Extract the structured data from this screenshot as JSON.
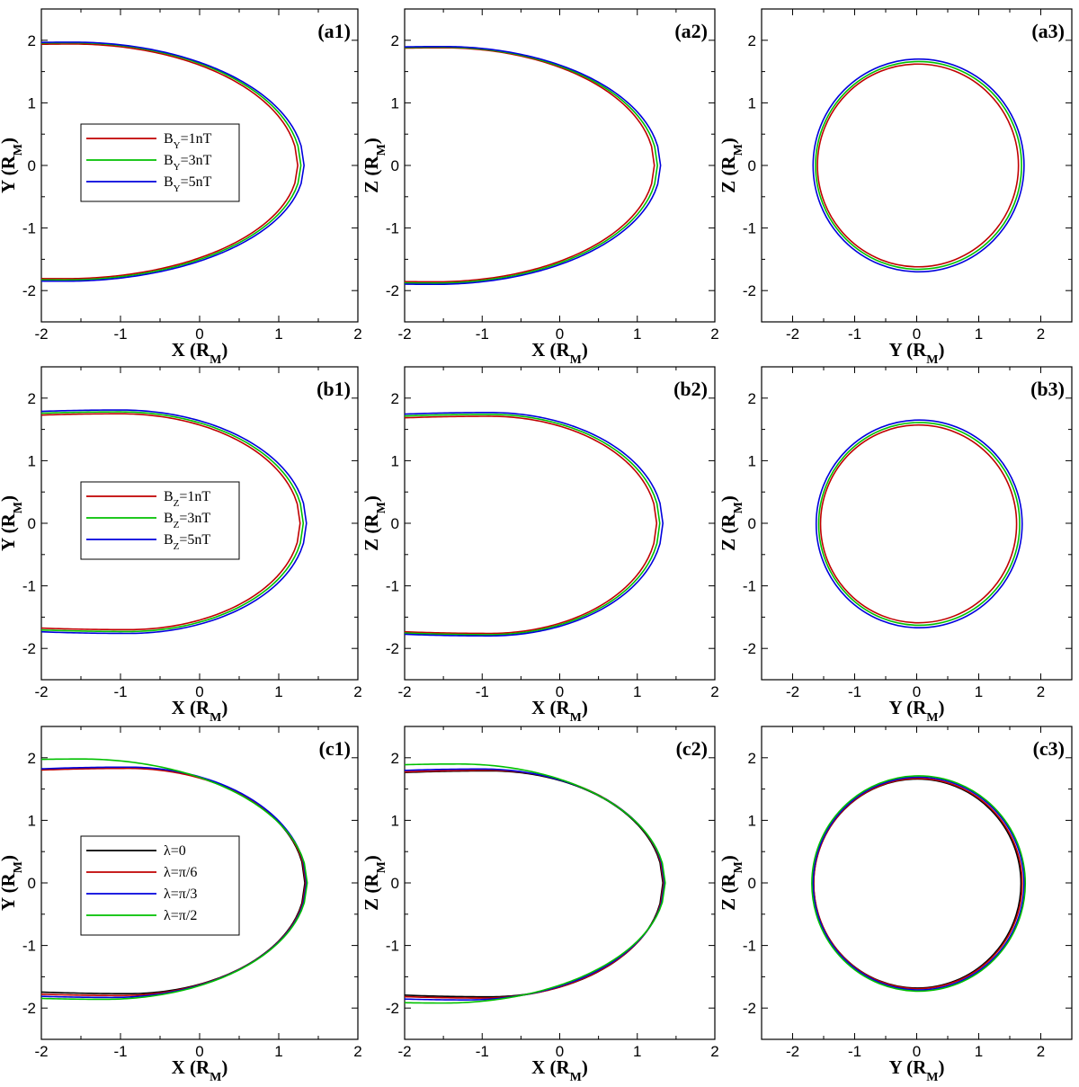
{
  "colors": {
    "red": "#c00000",
    "green": "#00c000",
    "blue": "#0000dd",
    "black": "#000000"
  },
  "chart_data": [
    {
      "id": "a1",
      "type": "line",
      "shape": "xsec",
      "xlabel": "X (R",
      "ylabel": "Y (R",
      "label_sub": "M",
      "xlim": [
        -2,
        2
      ],
      "ylim": [
        -2.5,
        2.5
      ],
      "xticks": [
        -2,
        -1,
        0,
        1,
        2
      ],
      "yticks": [
        -2,
        -1,
        0,
        1,
        2
      ],
      "legend": {
        "placement": "center-left",
        "entries": [
          {
            "base": "B",
            "sub": "Y",
            "rest": "=1nT",
            "color": "red"
          },
          {
            "base": "B",
            "sub": "Y",
            "rest": "=3nT",
            "color": "green"
          },
          {
            "base": "B",
            "sub": "Y",
            "rest": "=5nT",
            "color": "blue"
          }
        ]
      },
      "series": [
        {
          "color": "red",
          "nose": 1.24,
          "top": 1.94,
          "bottom": -1.81,
          "top_peak_x": -1.6,
          "bottom_peak_x": -1.7
        },
        {
          "color": "green",
          "nose": 1.28,
          "top": 1.96,
          "bottom": -1.83,
          "top_peak_x": -1.6,
          "bottom_peak_x": -1.7
        },
        {
          "color": "blue",
          "nose": 1.32,
          "top": 1.97,
          "bottom": -1.85,
          "top_peak_x": -1.6,
          "bottom_peak_x": -1.7
        }
      ]
    },
    {
      "id": "a2",
      "type": "line",
      "shape": "xsec",
      "xlabel": "X (R",
      "ylabel": "Z (R",
      "label_sub": "M",
      "xlim": [
        -2,
        2
      ],
      "ylim": [
        -2.5,
        2.5
      ],
      "xticks": [
        -2,
        -1,
        0,
        1,
        2
      ],
      "yticks": [
        -2,
        -1,
        0,
        1,
        2
      ],
      "series": [
        {
          "color": "red",
          "nose": 1.22,
          "top": 1.88,
          "bottom": -1.86,
          "top_peak_x": -1.5,
          "bottom_peak_x": -1.6
        },
        {
          "color": "green",
          "nose": 1.26,
          "top": 1.89,
          "bottom": -1.88,
          "top_peak_x": -1.5,
          "bottom_peak_x": -1.6
        },
        {
          "color": "blue",
          "nose": 1.3,
          "top": 1.9,
          "bottom": -1.9,
          "top_peak_x": -1.5,
          "bottom_peak_x": -1.6
        }
      ]
    },
    {
      "id": "a3",
      "type": "line",
      "shape": "circle",
      "xlabel": "Y (R",
      "ylabel": "Z (R",
      "label_sub": "M",
      "xlim": [
        -2.5,
        2.5
      ],
      "ylim": [
        -2.5,
        2.5
      ],
      "xticks": [
        -2,
        -1,
        0,
        1,
        2
      ],
      "yticks": [
        -2,
        -1,
        0,
        1,
        2
      ],
      "series": [
        {
          "color": "red",
          "r": 1.62,
          "cx": 0.02,
          "cy": 0
        },
        {
          "color": "green",
          "r": 1.66,
          "cx": 0.03,
          "cy": 0
        },
        {
          "color": "blue",
          "r": 1.7,
          "cx": 0.03,
          "cy": 0
        }
      ]
    },
    {
      "id": "b1",
      "type": "line",
      "shape": "xsec",
      "xlabel": "X (R",
      "ylabel": "Y (R",
      "label_sub": "M",
      "xlim": [
        -2,
        2
      ],
      "ylim": [
        -2.5,
        2.5
      ],
      "xticks": [
        -2,
        -1,
        0,
        1,
        2
      ],
      "yticks": [
        -2,
        -1,
        0,
        1,
        2
      ],
      "legend": {
        "placement": "center-left",
        "entries": [
          {
            "base": "B",
            "sub": "Z",
            "rest": "=1nT",
            "color": "red"
          },
          {
            "base": "B",
            "sub": "Z",
            "rest": "=3nT",
            "color": "green"
          },
          {
            "base": "B",
            "sub": "Z",
            "rest": "=5nT",
            "color": "blue"
          }
        ]
      },
      "series": [
        {
          "color": "red",
          "nose": 1.27,
          "top": 1.75,
          "bottom": -1.7,
          "top_peak_x": -1.0,
          "bottom_peak_x": -0.9
        },
        {
          "color": "green",
          "nose": 1.31,
          "top": 1.78,
          "bottom": -1.73,
          "top_peak_x": -1.0,
          "bottom_peak_x": -0.9
        },
        {
          "color": "blue",
          "nose": 1.35,
          "top": 1.81,
          "bottom": -1.76,
          "top_peak_x": -1.0,
          "bottom_peak_x": -0.9
        }
      ]
    },
    {
      "id": "b2",
      "type": "line",
      "shape": "xsec",
      "xlabel": "X (R",
      "ylabel": "Z (R",
      "label_sub": "M",
      "xlim": [
        -2,
        2
      ],
      "ylim": [
        -2.5,
        2.5
      ],
      "xticks": [
        -2,
        -1,
        0,
        1,
        2
      ],
      "yticks": [
        -2,
        -1,
        0,
        1,
        2
      ],
      "series": [
        {
          "color": "red",
          "nose": 1.25,
          "top": 1.71,
          "bottom": -1.76,
          "top_peak_x": -0.9,
          "bottom_peak_x": -0.9
        },
        {
          "color": "green",
          "nose": 1.29,
          "top": 1.74,
          "bottom": -1.78,
          "top_peak_x": -0.9,
          "bottom_peak_x": -0.9
        },
        {
          "color": "blue",
          "nose": 1.33,
          "top": 1.77,
          "bottom": -1.8,
          "top_peak_x": -0.9,
          "bottom_peak_x": -0.9
        }
      ]
    },
    {
      "id": "b3",
      "type": "line",
      "shape": "circle",
      "xlabel": "Y (R",
      "ylabel": "Z (R",
      "label_sub": "M",
      "xlim": [
        -2.5,
        2.5
      ],
      "ylim": [
        -2.5,
        2.5
      ],
      "xticks": [
        -2,
        -1,
        0,
        1,
        2
      ],
      "yticks": [
        -2,
        -1,
        0,
        1,
        2
      ],
      "series": [
        {
          "color": "red",
          "r": 1.58,
          "cx": 0.03,
          "cy": -0.01
        },
        {
          "color": "green",
          "r": 1.62,
          "cx": 0.04,
          "cy": -0.01
        },
        {
          "color": "blue",
          "r": 1.66,
          "cx": 0.04,
          "cy": -0.01
        }
      ]
    },
    {
      "id": "c1",
      "type": "line",
      "shape": "xsec",
      "xlabel": "X (R",
      "ylabel": "Y (R",
      "label_sub": "M",
      "xlim": [
        -2,
        2
      ],
      "ylim": [
        -2.5,
        2.5
      ],
      "xticks": [
        -2,
        -1,
        0,
        1,
        2
      ],
      "yticks": [
        -2,
        -1,
        0,
        1,
        2
      ],
      "legend": {
        "placement": "center-left",
        "entries": [
          {
            "base": "λ",
            "sub": "",
            "rest": "=0",
            "color": "black"
          },
          {
            "base": "λ",
            "sub": "",
            "rest": "=π/6",
            "color": "red"
          },
          {
            "base": "λ",
            "sub": "",
            "rest": "=π/3",
            "color": "blue"
          },
          {
            "base": "λ",
            "sub": "",
            "rest": "=π/2",
            "color": "green"
          }
        ]
      },
      "series": [
        {
          "color": "black",
          "nose": 1.33,
          "top": 1.84,
          "bottom": -1.77,
          "top_peak_x": -0.9,
          "bottom_peak_x": -0.9
        },
        {
          "color": "red",
          "nose": 1.34,
          "top": 1.83,
          "bottom": -1.8,
          "top_peak_x": -0.9,
          "bottom_peak_x": -1.0
        },
        {
          "color": "blue",
          "nose": 1.35,
          "top": 1.85,
          "bottom": -1.83,
          "top_peak_x": -0.9,
          "bottom_peak_x": -1.1
        },
        {
          "color": "green",
          "nose": 1.36,
          "top": 1.98,
          "bottom": -1.86,
          "top_peak_x": -1.5,
          "bottom_peak_x": -1.2
        }
      ]
    },
    {
      "id": "c2",
      "type": "line",
      "shape": "xsec",
      "xlabel": "X (R",
      "ylabel": "Z (R",
      "label_sub": "M",
      "xlim": [
        -2,
        2
      ],
      "ylim": [
        -2.5,
        2.5
      ],
      "xticks": [
        -2,
        -1,
        0,
        1,
        2
      ],
      "yticks": [
        -2,
        -1,
        0,
        1,
        2
      ],
      "series": [
        {
          "color": "black",
          "nose": 1.33,
          "top": 1.79,
          "bottom": -1.82,
          "top_peak_x": -0.9,
          "bottom_peak_x": -0.9
        },
        {
          "color": "red",
          "nose": 1.34,
          "top": 1.8,
          "bottom": -1.84,
          "top_peak_x": -0.9,
          "bottom_peak_x": -1.0
        },
        {
          "color": "blue",
          "nose": 1.35,
          "top": 1.82,
          "bottom": -1.87,
          "top_peak_x": -1.0,
          "bottom_peak_x": -1.2
        },
        {
          "color": "green",
          "nose": 1.36,
          "top": 1.9,
          "bottom": -1.92,
          "top_peak_x": -1.3,
          "bottom_peak_x": -1.5
        }
      ]
    },
    {
      "id": "c3",
      "type": "line",
      "shape": "circle",
      "xlabel": "Y (R",
      "ylabel": "Z (R",
      "label_sub": "M",
      "xlim": [
        -2.5,
        2.5
      ],
      "ylim": [
        -2.5,
        2.5
      ],
      "xticks": [
        -2,
        -1,
        0,
        1,
        2
      ],
      "yticks": [
        -2,
        -1,
        0,
        1,
        2
      ],
      "series": [
        {
          "color": "black",
          "r": 1.67,
          "cx": 0.01,
          "cy": -0.01
        },
        {
          "color": "red",
          "r": 1.68,
          "cx": 0.02,
          "cy": -0.01
        },
        {
          "color": "blue",
          "r": 1.7,
          "cx": 0.03,
          "cy": -0.01
        },
        {
          "color": "green",
          "r": 1.72,
          "cx": 0.03,
          "cy": -0.01
        }
      ]
    }
  ],
  "panels": {
    "a1": {
      "tag": "(a1)"
    },
    "a2": {
      "tag": "(a2)"
    },
    "a3": {
      "tag": "(a3)"
    },
    "b1": {
      "tag": "(b1)"
    },
    "b2": {
      "tag": "(b2)"
    },
    "b3": {
      "tag": "(b3)"
    },
    "c1": {
      "tag": "(c1)"
    },
    "c2": {
      "tag": "(c2)"
    },
    "c3": {
      "tag": "(c3)"
    }
  }
}
